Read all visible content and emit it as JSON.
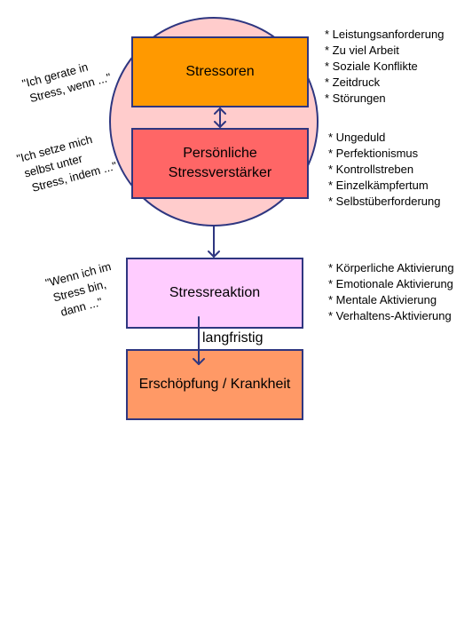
{
  "boxes": {
    "stressoren": "Stressoren",
    "verstaerker_line1": "Persönliche",
    "verstaerker_line2": "Stressverstärker",
    "reaktion": "Stressreaktion",
    "erschoepfung": "Erschöpfung / Krankheit"
  },
  "quotes": {
    "q1_line1": "\"Ich gerate in",
    "q1_line2": "Stress, wenn ...\"",
    "q2_line1": "\"Ich setze mich",
    "q2_line2": "selbst unter",
    "q2_line3": "Stress, indem ...\"",
    "q3_line1": "\"Wenn ich im",
    "q3_line2": "Stress bin,",
    "q3_line3": "dann ...\""
  },
  "lists": {
    "stressoren": [
      "* Leistungsanforderung",
      "* Zu viel Arbeit",
      "* Soziale Konflikte",
      "* Zeitdruck",
      "* Störungen"
    ],
    "verstaerker": [
      "* Ungeduld",
      "* Perfektionismus",
      "* Kontrollstreben",
      "* Einzelkämpfertum",
      "* Selbstüberforderung"
    ],
    "reaktion": [
      "* Körperliche Aktivierung",
      "* Emotionale Aktivierung",
      "* Mentale Aktivierung",
      "* Verhaltens-Aktivierung"
    ]
  },
  "arrow_label": "langfristig",
  "colors": {
    "circle": "#ffcccc",
    "stressoren": "#ff9900",
    "verstaerker": "#ff6666",
    "reaktion": "#ffccff",
    "erschoepfung": "#ff9966",
    "stroke": "#2e3680"
  }
}
